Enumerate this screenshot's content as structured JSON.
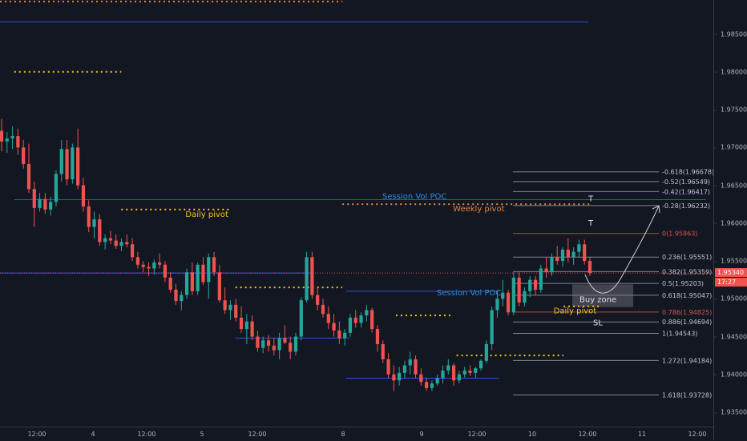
{
  "colors": {
    "background": "#131722",
    "bull": "#26a69a",
    "bear": "#ef5350",
    "pivot_yellow": "#f5c518",
    "pivot_orange": "#e8823c",
    "poc_blue": "#2962ff",
    "poc_text": "#2e8ee0",
    "fib_line": "#9aa0a6",
    "fib_red": "#d9534f",
    "buy_zone": "#787b86",
    "path": "#d1d4dc"
  },
  "chart_data": {
    "type": "candlestick",
    "y_axis": {
      "range": [
        1.9313,
        1.9895
      ],
      "ticks": [
        "1.98500",
        "1.98000",
        "1.97500",
        "1.97000",
        "1.96500",
        "1.96000",
        "1.95500",
        "1.95000",
        "1.94500",
        "1.94000",
        "1.93500"
      ]
    },
    "x_axis": {
      "ticks": [
        "12:00",
        "4",
        "12:00",
        "5",
        "12:00",
        "8",
        "9",
        "12:00",
        "10",
        "12:00",
        "11",
        "12:00"
      ]
    },
    "current_price": {
      "label": "1.95340",
      "countdown": "17:27",
      "value": 1.9534
    },
    "candles": [
      [
        1.9722,
        1.9738,
        1.9695,
        1.9708
      ],
      [
        1.9708,
        1.972,
        1.9693,
        1.9712
      ],
      [
        1.9712,
        1.9728,
        1.9698,
        1.9715
      ],
      [
        1.9715,
        1.9725,
        1.969,
        1.97
      ],
      [
        1.97,
        1.971,
        1.9672,
        1.9678
      ],
      [
        1.9678,
        1.9705,
        1.964,
        1.9645
      ],
      [
        1.9645,
        1.9655,
        1.9595,
        1.962
      ],
      [
        1.962,
        1.964,
        1.9615,
        1.9632
      ],
      [
        1.9632,
        1.964,
        1.9612,
        1.9618
      ],
      [
        1.9618,
        1.9635,
        1.961,
        1.9628
      ],
      [
        1.9628,
        1.967,
        1.9622,
        1.9665
      ],
      [
        1.9665,
        1.971,
        1.9655,
        1.9698
      ],
      [
        1.9698,
        1.971,
        1.965,
        1.9658
      ],
      [
        1.9658,
        1.9705,
        1.9652,
        1.97
      ],
      [
        1.97,
        1.9725,
        1.9645,
        1.965
      ],
      [
        1.965,
        1.966,
        1.9615,
        1.9622
      ],
      [
        1.9622,
        1.963,
        1.9588,
        1.9595
      ],
      [
        1.9595,
        1.9615,
        1.958,
        1.9605
      ],
      [
        1.9605,
        1.9612,
        1.957,
        1.9575
      ],
      [
        1.9575,
        1.9585,
        1.9565,
        1.958
      ],
      [
        1.958,
        1.959,
        1.9572,
        1.9577
      ],
      [
        1.9577,
        1.9585,
        1.9566,
        1.957
      ],
      [
        1.957,
        1.958,
        1.9563,
        1.9575
      ],
      [
        1.9575,
        1.9585,
        1.9568,
        1.9572
      ],
      [
        1.9572,
        1.958,
        1.955,
        1.9555
      ],
      [
        1.9555,
        1.9562,
        1.954,
        1.9545
      ],
      [
        1.9545,
        1.955,
        1.9535,
        1.9542
      ],
      [
        1.9542,
        1.9548,
        1.953,
        1.954
      ],
      [
        1.954,
        1.9552,
        1.9532,
        1.9548
      ],
      [
        1.9548,
        1.956,
        1.954,
        1.9545
      ],
      [
        1.9545,
        1.955,
        1.9522,
        1.9528
      ],
      [
        1.9528,
        1.9535,
        1.9508,
        1.9512
      ],
      [
        1.9512,
        1.952,
        1.9492,
        1.9497
      ],
      [
        1.9497,
        1.951,
        1.9485,
        1.9505
      ],
      [
        1.9505,
        1.954,
        1.95,
        1.9535
      ],
      [
        1.9535,
        1.9548,
        1.9505,
        1.951
      ],
      [
        1.951,
        1.9548,
        1.9505,
        1.9545
      ],
      [
        1.9545,
        1.9555,
        1.9518,
        1.9522
      ],
      [
        1.9522,
        1.956,
        1.95,
        1.9555
      ],
      [
        1.9555,
        1.9562,
        1.953,
        1.9535
      ],
      [
        1.9535,
        1.9545,
        1.9495,
        1.9498
      ],
      [
        1.9498,
        1.9515,
        1.948,
        1.9485
      ],
      [
        1.9485,
        1.9498,
        1.9472,
        1.9492
      ],
      [
        1.9492,
        1.95,
        1.947,
        1.9475
      ],
      [
        1.9475,
        1.949,
        1.9455,
        1.946
      ],
      [
        1.946,
        1.948,
        1.944,
        1.947
      ],
      [
        1.947,
        1.9478,
        1.9445,
        1.945
      ],
      [
        1.945,
        1.9458,
        1.943,
        1.9435
      ],
      [
        1.9435,
        1.945,
        1.9428,
        1.9445
      ],
      [
        1.9445,
        1.9452,
        1.943,
        1.9438
      ],
      [
        1.9438,
        1.9448,
        1.9425,
        1.9432
      ],
      [
        1.9432,
        1.9455,
        1.942,
        1.9448
      ],
      [
        1.9448,
        1.9465,
        1.944,
        1.9442
      ],
      [
        1.9442,
        1.945,
        1.942,
        1.943
      ],
      [
        1.943,
        1.9455,
        1.9425,
        1.945
      ],
      [
        1.945,
        1.9502,
        1.9445,
        1.9498
      ],
      [
        1.9498,
        1.9562,
        1.9495,
        1.9555
      ],
      [
        1.9555,
        1.9562,
        1.95,
        1.9505
      ],
      [
        1.9505,
        1.9515,
        1.9485,
        1.9492
      ],
      [
        1.9492,
        1.95,
        1.9475,
        1.948
      ],
      [
        1.948,
        1.949,
        1.946,
        1.9468
      ],
      [
        1.9468,
        1.948,
        1.945,
        1.9458
      ],
      [
        1.9458,
        1.947,
        1.944,
        1.9448
      ],
      [
        1.9448,
        1.946,
        1.9438,
        1.9455
      ],
      [
        1.9455,
        1.948,
        1.945,
        1.9475
      ],
      [
        1.9475,
        1.9485,
        1.9462,
        1.9468
      ],
      [
        1.9468,
        1.9482,
        1.9462,
        1.9478
      ],
      [
        1.9478,
        1.9492,
        1.947,
        1.9485
      ],
      [
        1.9485,
        1.9488,
        1.9455,
        1.946
      ],
      [
        1.946,
        1.9465,
        1.943,
        1.944
      ],
      [
        1.944,
        1.9445,
        1.9415,
        1.942
      ],
      [
        1.942,
        1.9428,
        1.9395,
        1.94
      ],
      [
        1.94,
        1.9412,
        1.9378,
        1.9392
      ],
      [
        1.9392,
        1.941,
        1.9385,
        1.9402
      ],
      [
        1.9402,
        1.9418,
        1.9395,
        1.9412
      ],
      [
        1.9412,
        1.943,
        1.94,
        1.942
      ],
      [
        1.942,
        1.9425,
        1.9395,
        1.94
      ],
      [
        1.94,
        1.9408,
        1.9385,
        1.939
      ],
      [
        1.939,
        1.9395,
        1.9378,
        1.9382
      ],
      [
        1.9382,
        1.9392,
        1.9378,
        1.9388
      ],
      [
        1.9388,
        1.94,
        1.9385,
        1.9395
      ],
      [
        1.9395,
        1.9412,
        1.9388,
        1.9405
      ],
      [
        1.9405,
        1.942,
        1.94,
        1.9412
      ],
      [
        1.9412,
        1.9415,
        1.9385,
        1.9392
      ],
      [
        1.9392,
        1.9405,
        1.9388,
        1.94
      ],
      [
        1.94,
        1.941,
        1.9396,
        1.9405
      ],
      [
        1.9405,
        1.9412,
        1.9398,
        1.9402
      ],
      [
        1.9402,
        1.941,
        1.9395,
        1.9408
      ],
      [
        1.9408,
        1.942,
        1.9405,
        1.9418
      ],
      [
        1.9418,
        1.9445,
        1.9415,
        1.944
      ],
      [
        1.944,
        1.949,
        1.9432,
        1.9485
      ],
      [
        1.9485,
        1.951,
        1.9475,
        1.95
      ],
      [
        1.95,
        1.9525,
        1.949,
        1.9508
      ],
      [
        1.9508,
        1.9512,
        1.9478,
        1.9482
      ],
      [
        1.9482,
        1.9535,
        1.9478,
        1.9528
      ],
      [
        1.9528,
        1.9535,
        1.949,
        1.9495
      ],
      [
        1.9495,
        1.9515,
        1.949,
        1.951
      ],
      [
        1.951,
        1.953,
        1.9502,
        1.9525
      ],
      [
        1.9525,
        1.953,
        1.9505,
        1.9512
      ],
      [
        1.9512,
        1.9545,
        1.9508,
        1.954
      ],
      [
        1.954,
        1.9555,
        1.9528,
        1.9535
      ],
      [
        1.9535,
        1.956,
        1.953,
        1.9555
      ],
      [
        1.9555,
        1.957,
        1.9545,
        1.955
      ],
      [
        1.955,
        1.9568,
        1.9542,
        1.9565
      ],
      [
        1.9565,
        1.958,
        1.9548,
        1.9555
      ],
      [
        1.9555,
        1.9568,
        1.9545,
        1.9562
      ],
      [
        1.9562,
        1.9578,
        1.9555,
        1.9572
      ],
      [
        1.9572,
        1.9578,
        1.9545,
        1.955
      ],
      [
        1.955,
        1.9555,
        1.953,
        1.9534
      ]
    ],
    "horizontal_levels": [
      {
        "name": "session-vol-poc-line-1",
        "label": "Session Vol POC",
        "value": 1.9631,
        "x_from": 0.02,
        "x_to": 0.99,
        "color": "#2962ff"
      },
      {
        "name": "session-vol-poc-line-2",
        "label": "Session Vol POC",
        "value": 1.951,
        "x_from": 0.485,
        "x_to": 0.7,
        "color": "#2962ff"
      },
      {
        "name": "poc-line-3",
        "label": "",
        "value": 1.9448,
        "x_from": 0.33,
        "x_to": 0.49,
        "color": "#2962ff"
      },
      {
        "name": "poc-line-4",
        "label": "",
        "value": 1.9395,
        "x_from": 0.485,
        "x_to": 0.7,
        "color": "#2962ff"
      },
      {
        "name": "poc-line-5",
        "label": "",
        "value": 1.9534,
        "x_from": 0.0,
        "x_to": 0.44,
        "color": "#2962ff"
      },
      {
        "name": "top-blue-line",
        "label": "",
        "value": 1.9866,
        "x_from": 0.0,
        "x_to": 0.825,
        "color": "#2962ff"
      }
    ],
    "pivots": [
      {
        "label": "Daily pivot",
        "value": 1.9618,
        "x_from": 0.17,
        "x_to": 0.325,
        "color": "#f5c518",
        "label_x": 0.26
      },
      {
        "label": "",
        "value": 1.9515,
        "x_from": 0.33,
        "x_to": 0.48,
        "color": "#f5c518",
        "label_x": null
      },
      {
        "label": "",
        "value": 1.9478,
        "x_from": 0.555,
        "x_to": 0.635,
        "color": "#f5c518",
        "label_x": null
      },
      {
        "label": "",
        "value": 1.9425,
        "x_from": 0.64,
        "x_to": 0.79,
        "color": "#f5c518",
        "label_x": null
      },
      {
        "label": "Daily pivot",
        "value": 1.949,
        "x_from": 0.79,
        "x_to": 0.84,
        "color": "#f5c518",
        "label_x": 0.776
      },
      {
        "label": "",
        "value": 1.98,
        "x_from": 0.02,
        "x_to": 0.17,
        "color": "#f5c518",
        "label_x": null
      },
      {
        "label": "Weekly pivot",
        "value": 1.9625,
        "x_from": 0.48,
        "x_to": 0.83,
        "color": "#e8823c",
        "label_x": 0.635
      },
      {
        "label": "",
        "value": 1.9893,
        "x_from": 0.0,
        "x_to": 0.48,
        "color": "#e8823c",
        "label_x": null
      }
    ],
    "fib_levels": [
      {
        "label": "-0.618(1.96678)",
        "value": 1.96678,
        "red": false
      },
      {
        "label": "-0.52(1.96549)",
        "value": 1.96549,
        "red": false
      },
      {
        "label": "-0.42(1.96417)",
        "value": 1.96417,
        "red": false
      },
      {
        "label": "-0.28(1.96232)",
        "value": 1.96232,
        "red": false
      },
      {
        "label": "0(1.95863)",
        "value": 1.95863,
        "red": true
      },
      {
        "label": "0.236(1.95551)",
        "value": 1.95551,
        "red": false
      },
      {
        "label": "0.382(1.95359)",
        "value": 1.95359,
        "red": false
      },
      {
        "label": "0.5(1.95203)",
        "value": 1.95203,
        "red": false
      },
      {
        "label": "0.618(1.95047)",
        "value": 1.95047,
        "red": false
      },
      {
        "label": "0.786(1.94825)",
        "value": 1.94825,
        "red": true
      },
      {
        "label": "0.886(1.94694)",
        "value": 1.94694,
        "red": false
      },
      {
        "label": "1(1.94543)",
        "value": 1.94543,
        "red": false
      },
      {
        "label": "1.272(1.94184)",
        "value": 1.94184,
        "red": false
      },
      {
        "label": "1.618(1.93728)",
        "value": 1.93728,
        "red": false
      }
    ],
    "annotations": {
      "targets": [
        "T",
        "T"
      ],
      "stop_loss": "SL",
      "buy_zone": {
        "label": "Buy zone",
        "top": 1.9519,
        "bottom": 1.9489
      }
    }
  }
}
